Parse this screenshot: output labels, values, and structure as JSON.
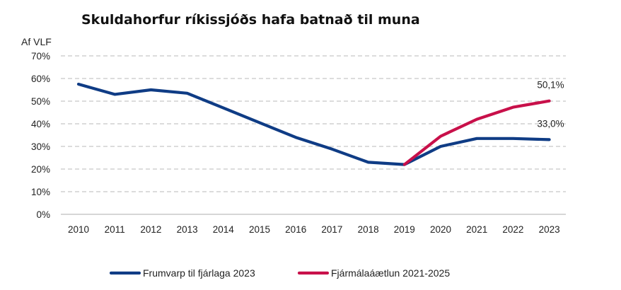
{
  "chart_data": {
    "type": "line",
    "title": "Skuldahorfur ríkissjóðs hafa batnað til muna",
    "ylabel": "Af VLF",
    "xlabel": "",
    "ylim": [
      0,
      70
    ],
    "y_ticks": [
      "0%",
      "10%",
      "20%",
      "30%",
      "40%",
      "50%",
      "60%",
      "70%"
    ],
    "x": [
      "2010",
      "2011",
      "2012",
      "2013",
      "2014",
      "2015",
      "2016",
      "2017",
      "2018",
      "2019",
      "2020",
      "2021",
      "2022",
      "2023"
    ],
    "grid": true,
    "legend_position": "bottom",
    "series": [
      {
        "name": "Frumvarp til fjárlaga 2023",
        "color": "#0f3c85",
        "values": [
          57.5,
          53,
          55,
          53.5,
          47,
          40.5,
          34,
          28.8,
          23,
          22,
          30,
          33.5,
          33.5,
          33.0
        ]
      },
      {
        "name": "Fjármálaáætlun 2021-2025",
        "color": "#c8104a",
        "values": [
          null,
          null,
          null,
          null,
          null,
          null,
          null,
          null,
          null,
          22,
          34.5,
          42,
          47.3,
          50.1
        ]
      }
    ],
    "annotations": [
      {
        "text": "50,1%",
        "x": "2023",
        "y": 50.1
      },
      {
        "text": "33,0%",
        "x": "2023",
        "y": 33.0
      }
    ]
  }
}
